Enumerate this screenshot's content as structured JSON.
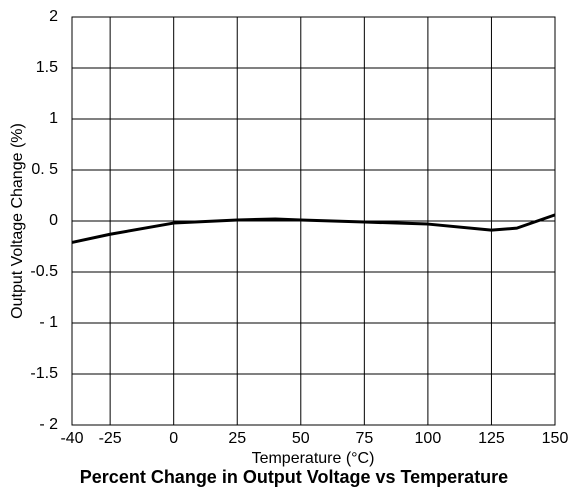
{
  "chart_data": {
    "type": "line",
    "title": "Percent Change in Output Voltage vs Temperature",
    "x_label": "Temperature (°C)",
    "y_label": "Output Voltage Change (%)",
    "x": [
      -40,
      -25,
      0,
      25,
      40,
      50,
      75,
      100,
      125,
      135,
      150
    ],
    "series": [
      {
        "name": "Output Voltage Change",
        "color": "#000000",
        "values": [
          -0.21,
          -0.13,
          -0.02,
          0.01,
          0.02,
          0.01,
          -0.01,
          -0.03,
          -0.09,
          -0.07,
          0.06
        ]
      }
    ],
    "xlim": [
      -40,
      150
    ],
    "xticks": [
      -40,
      -25,
      0,
      25,
      50,
      75,
      100,
      125,
      150
    ],
    "ylim": [
      -2,
      2
    ],
    "yticks": [
      2,
      1.5,
      1,
      {
        "value": 0.5,
        "label": "0. 5"
      },
      0,
      -0.5,
      {
        "value": -1,
        "label": "- 1"
      },
      -1.5,
      {
        "value": -2,
        "label": "- 2"
      }
    ],
    "grid": true
  }
}
